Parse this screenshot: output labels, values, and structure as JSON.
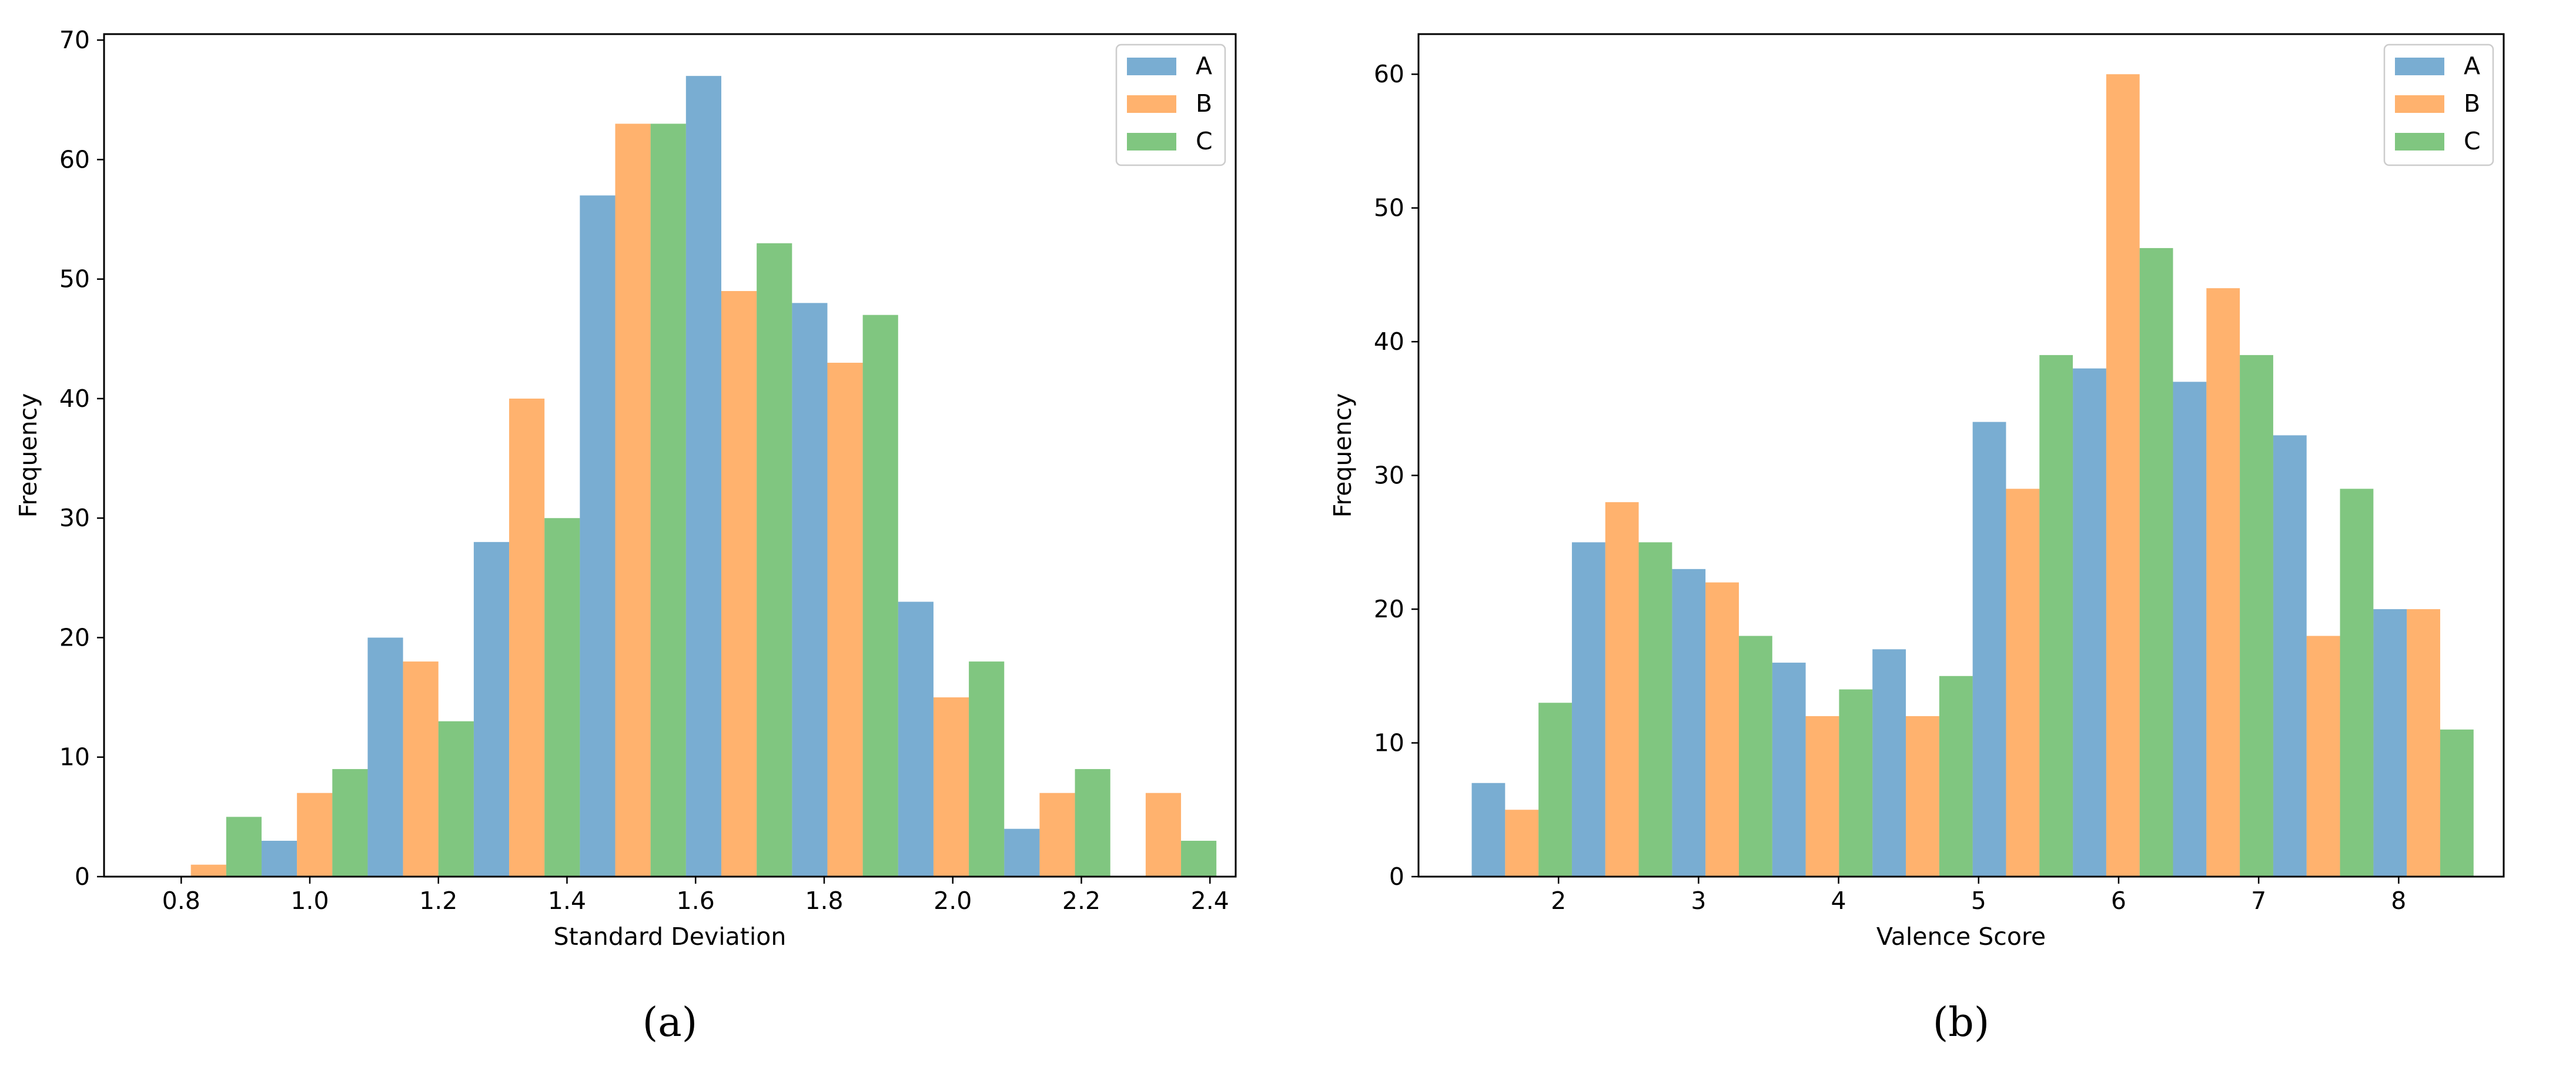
{
  "colors": {
    "A": "#1f77b4",
    "B": "#ff7f0e",
    "C": "#2ca02c",
    "bar_alpha": 0.6,
    "axis": "#000000",
    "legend_edge": "#cccccc"
  },
  "chart_data": [
    {
      "type": "bar",
      "caption": "(a)",
      "xlabel": "Standard Deviation",
      "ylabel": "Frequency",
      "xlim": [
        0.68,
        2.44
      ],
      "ylim": [
        0,
        70.5
      ],
      "xticks": [
        0.8,
        1.0,
        1.2,
        1.4,
        1.6,
        1.8,
        2.0,
        2.2,
        2.4
      ],
      "xtick_labels": [
        "0.8",
        "1.0",
        "1.2",
        "1.4",
        "1.6",
        "1.8",
        "2.0",
        "2.2",
        "2.4"
      ],
      "yticks": [
        0,
        10,
        20,
        30,
        40,
        50,
        60,
        70
      ],
      "ytick_labels": [
        "0",
        "10",
        "20",
        "30",
        "40",
        "50",
        "60",
        "70"
      ],
      "bin_width": 0.165,
      "group_starts": [
        0.76,
        0.925,
        1.09,
        1.255,
        1.42,
        1.585,
        1.75,
        1.915,
        2.08,
        2.245
      ],
      "legend": {
        "position": "upper-right",
        "entries": [
          "A",
          "B",
          "C"
        ]
      },
      "series": [
        {
          "name": "A",
          "values": [
            0,
            3,
            20,
            28,
            57,
            67,
            48,
            23,
            4,
            0
          ]
        },
        {
          "name": "B",
          "values": [
            1,
            7,
            18,
            40,
            63,
            49,
            43,
            15,
            7,
            7
          ]
        },
        {
          "name": "C",
          "values": [
            5,
            9,
            13,
            30,
            63,
            53,
            47,
            18,
            9,
            3
          ]
        }
      ]
    },
    {
      "type": "bar",
      "caption": "(b)",
      "xlabel": "Valence Score",
      "ylabel": "Frequency",
      "xlim": [
        1.0,
        8.75
      ],
      "ylim": [
        0,
        63
      ],
      "xticks": [
        2,
        3,
        4,
        5,
        6,
        7,
        8
      ],
      "xtick_labels": [
        "2",
        "3",
        "4",
        "5",
        "6",
        "7",
        "8"
      ],
      "yticks": [
        0,
        10,
        20,
        30,
        40,
        50,
        60
      ],
      "ytick_labels": [
        "0",
        "10",
        "20",
        "30",
        "40",
        "50",
        "60"
      ],
      "bin_width": 0.7155,
      "group_starts": [
        1.38,
        2.0955,
        2.811,
        3.5265,
        4.242,
        4.9575,
        5.673,
        6.3885,
        7.104,
        7.8195
      ],
      "legend": {
        "position": "upper-right",
        "entries": [
          "A",
          "B",
          "C"
        ]
      },
      "series": [
        {
          "name": "A",
          "values": [
            7,
            25,
            23,
            16,
            17,
            34,
            38,
            37,
            33,
            20
          ]
        },
        {
          "name": "B",
          "values": [
            5,
            28,
            22,
            12,
            12,
            29,
            60,
            44,
            18,
            20
          ]
        },
        {
          "name": "C",
          "values": [
            13,
            25,
            18,
            14,
            15,
            39,
            47,
            39,
            29,
            11
          ]
        }
      ]
    }
  ]
}
